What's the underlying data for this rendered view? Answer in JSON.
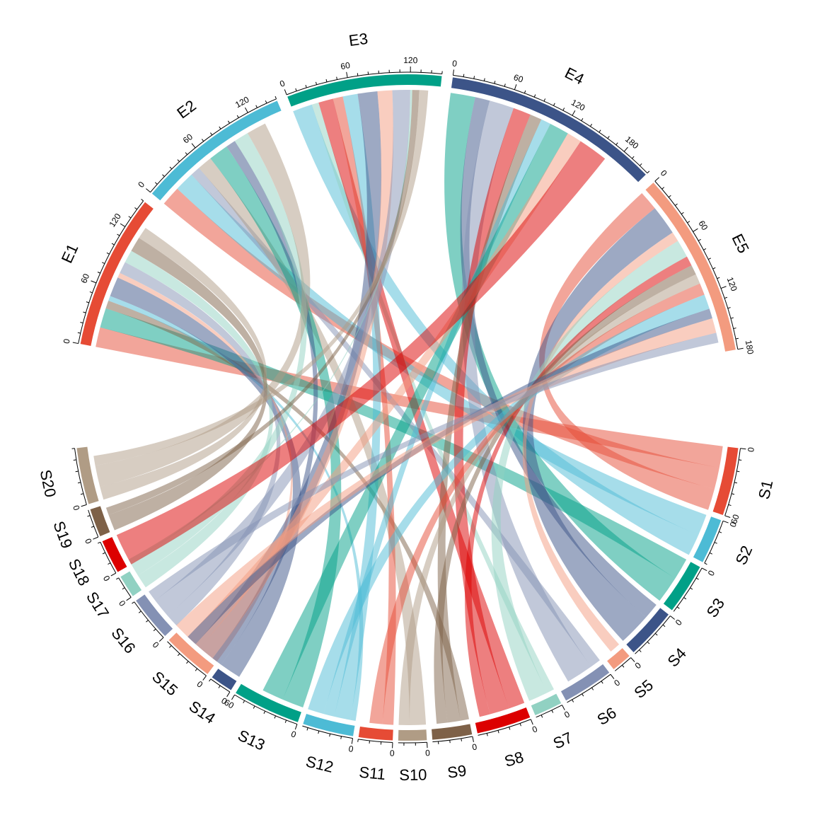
{
  "chart_data": {
    "type": "chord",
    "title": "",
    "sectors_top": [
      {
        "name": "E1",
        "color": "#E64B35",
        "total": 150,
        "ticks": [
          0,
          60,
          120
        ]
      },
      {
        "name": "E2",
        "color": "#4DBBD5",
        "total": 150,
        "ticks": [
          0,
          60,
          120
        ]
      },
      {
        "name": "E3",
        "color": "#00A087",
        "total": 150,
        "ticks": [
          0,
          60,
          120
        ]
      },
      {
        "name": "E4",
        "color": "#3C5488",
        "total": 210,
        "ticks": [
          0,
          60,
          120,
          180
        ]
      },
      {
        "name": "E5",
        "color": "#F39B7F",
        "total": 180,
        "ticks": [
          0,
          60,
          120,
          180
        ]
      }
    ],
    "sectors_bottom": [
      {
        "name": "S1",
        "color": "#E64B35",
        "total": 60,
        "ticks": [
          0,
          60
        ]
      },
      {
        "name": "S2",
        "color": "#4DBBD5",
        "total": 40,
        "ticks": [
          0
        ]
      },
      {
        "name": "S3",
        "color": "#00A087",
        "total": 45,
        "ticks": [
          0
        ]
      },
      {
        "name": "S4",
        "color": "#3C5488",
        "total": 45,
        "ticks": [
          0
        ]
      },
      {
        "name": "S5",
        "color": "#F39B7F",
        "total": 18,
        "ticks": [
          0
        ]
      },
      {
        "name": "S6",
        "color": "#8491B4",
        "total": 45,
        "ticks": [
          0
        ]
      },
      {
        "name": "S7",
        "color": "#91D1C2",
        "total": 25,
        "ticks": [
          0
        ]
      },
      {
        "name": "S8",
        "color": "#DC0000",
        "total": 48,
        "ticks": [
          0
        ]
      },
      {
        "name": "S9",
        "color": "#7E6148",
        "total": 35,
        "ticks": [
          0
        ]
      },
      {
        "name": "S10",
        "color": "#B09C85",
        "total": 25,
        "ticks": [
          0
        ]
      },
      {
        "name": "S11",
        "color": "#E64B35",
        "total": 30,
        "ticks": [
          0
        ]
      },
      {
        "name": "S12",
        "color": "#4DBBD5",
        "total": 45,
        "ticks": [
          0
        ]
      },
      {
        "name": "S13",
        "color": "#00A087",
        "total": 60,
        "ticks": [
          0,
          60
        ]
      },
      {
        "name": "S14",
        "color": "#3C5488",
        "total": 20,
        "ticks": [
          0
        ]
      },
      {
        "name": "S15",
        "color": "#F39B7F",
        "total": 45,
        "ticks": [
          0
        ]
      },
      {
        "name": "S16",
        "color": "#8491B4",
        "total": 40,
        "ticks": [
          0
        ]
      },
      {
        "name": "S17",
        "color": "#91D1C2",
        "total": 20,
        "ticks": [
          0
        ]
      },
      {
        "name": "S18",
        "color": "#DC0000",
        "total": 30,
        "ticks": [
          0
        ]
      },
      {
        "name": "S19",
        "color": "#7E6148",
        "total": 25,
        "ticks": [
          0
        ]
      },
      {
        "name": "S20",
        "color": "#B09C85",
        "total": 50,
        "ticks": [
          0
        ]
      }
    ],
    "link_matrix_note": "",
    "links": [
      [
        20,
        0,
        20,
        0,
        0,
        0,
        0,
        0,
        8,
        0,
        0,
        5,
        0,
        20,
        5,
        12,
        13,
        0,
        15,
        12
      ],
      [
        20,
        20,
        0,
        0,
        0,
        10,
        0,
        0,
        0,
        15,
        0,
        0,
        20,
        10,
        0,
        0,
        15,
        0,
        0,
        20
      ],
      [
        0,
        20,
        0,
        0,
        0,
        0,
        7,
        15,
        0,
        0,
        10,
        15,
        0,
        20,
        15,
        18,
        2,
        0,
        7,
        9
      ],
      [
        0,
        0,
        25,
        15,
        0,
        25,
        0,
        18,
        12,
        0,
        0,
        10,
        20,
        0,
        15,
        0,
        0,
        30,
        0,
        0
      ],
      [
        20,
        0,
        0,
        30,
        10,
        0,
        18,
        10,
        10,
        10,
        12,
        15,
        0,
        10,
        15,
        10,
        0,
        0,
        0,
        0
      ]
    ]
  }
}
